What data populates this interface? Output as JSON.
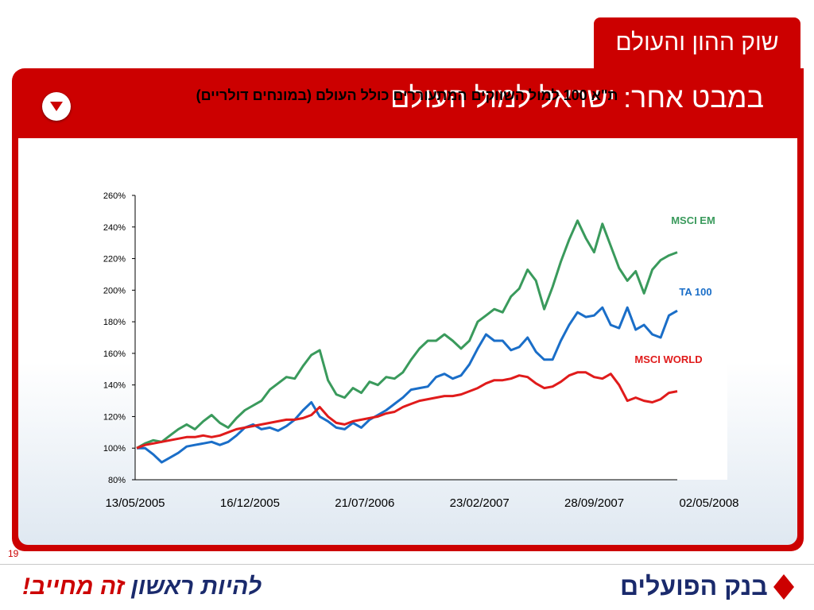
{
  "header": {
    "tab_title": "שוק ההון והעולם",
    "slide_title": "במבט אחר: ישראל למול העולם"
  },
  "page_number": "19",
  "footer": {
    "slogan_part1": "להיות ראשון",
    "slogan_part2": "זה מחייב!",
    "bank_name": "בנק הפועלים"
  },
  "colors": {
    "brand_red": "#cc0000",
    "msci_em": "#3a9a5c",
    "ta100": "#1a6ec8",
    "msci_world": "#e01b1b"
  },
  "chart_data": {
    "type": "line",
    "title": "ת\"א 100 למול השווקים המתעוררים כולל העולם (במונחים דולריים)",
    "ylim": [
      80,
      260
    ],
    "y_ticks": [
      "80%",
      "100%",
      "120%",
      "140%",
      "160%",
      "180%",
      "200%",
      "220%",
      "240%",
      "260%"
    ],
    "x_tick_labels": [
      "13/05/2005",
      "16/12/2005",
      "21/07/2006",
      "23/02/2007",
      "28/09/2007",
      "02/05/2008"
    ],
    "legend_placement": "right, next to series ends",
    "grid": false,
    "series": [
      {
        "name": "MSCI EM",
        "color": "#3a9a5c",
        "values": [
          100,
          103,
          105,
          104,
          108,
          112,
          115,
          112,
          117,
          121,
          116,
          113,
          119,
          124,
          127,
          130,
          137,
          141,
          145,
          144,
          152,
          159,
          162,
          143,
          134,
          132,
          138,
          135,
          142,
          140,
          145,
          144,
          148,
          156,
          163,
          168,
          168,
          172,
          168,
          163,
          168,
          180,
          184,
          188,
          186,
          196,
          201,
          213,
          206,
          188,
          202,
          218,
          232,
          244,
          233,
          224,
          242,
          228,
          214,
          206,
          212,
          198,
          213,
          219,
          222,
          224
        ]
      },
      {
        "name": "TA 100",
        "color": "#1a6ec8",
        "values": [
          100,
          100,
          96,
          91,
          94,
          97,
          101,
          102,
          103,
          104,
          102,
          104,
          108,
          113,
          115,
          112,
          113,
          111,
          114,
          118,
          124,
          129,
          120,
          117,
          113,
          112,
          116,
          113,
          118,
          121,
          124,
          128,
          132,
          137,
          138,
          139,
          145,
          147,
          144,
          146,
          153,
          163,
          172,
          168,
          168,
          162,
          164,
          170,
          161,
          156,
          156,
          168,
          178,
          186,
          183,
          184,
          189,
          178,
          176,
          189,
          175,
          178,
          172,
          170,
          184,
          187
        ]
      },
      {
        "name": "MSCI  WORLD",
        "color": "#e01b1b",
        "values": [
          100,
          102,
          103,
          104,
          105,
          106,
          107,
          107,
          108,
          107,
          108,
          110,
          112,
          113,
          114,
          115,
          116,
          117,
          118,
          118,
          119,
          121,
          126,
          120,
          116,
          115,
          117,
          118,
          119,
          120,
          122,
          123,
          126,
          128,
          130,
          131,
          132,
          133,
          133,
          134,
          136,
          138,
          141,
          143,
          143,
          144,
          146,
          145,
          141,
          138,
          139,
          142,
          146,
          148,
          148,
          145,
          144,
          147,
          140,
          130,
          132,
          130,
          129,
          131,
          135,
          136
        ]
      }
    ]
  }
}
